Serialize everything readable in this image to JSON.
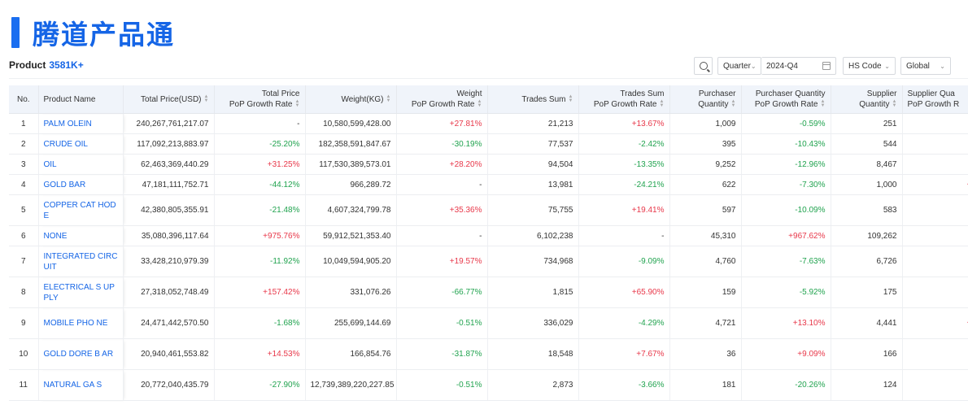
{
  "brand": {
    "title": "腾道产品通"
  },
  "summary": {
    "label": "Product",
    "count": "3581K+"
  },
  "filters": {
    "search_icon": "search-icon",
    "period": "Quarter",
    "date": "2024-Q4",
    "code_type": "HS Code",
    "region": "Global"
  },
  "colors": {
    "accent": "#1565e6",
    "positive": "#e8384a",
    "negative": "#21a34f"
  },
  "table": {
    "headers": {
      "no": "No.",
      "name": "Product Name",
      "total_price": "Total Price(USD)",
      "tp_rate_1": "Total Price",
      "tp_rate_2": "PoP Growth Rate",
      "weight": "Weight(KG)",
      "w_rate_1": "Weight",
      "w_rate_2": "PoP Growth Rate",
      "trades": "Trades Sum",
      "t_rate_1": "Trades Sum",
      "t_rate_2": "PoP Growth Rate",
      "pq_1": "Purchaser",
      "pq_2": "Quantity",
      "pq_rate_1": "Purchaser Quantity",
      "pq_rate_2": "PoP Growth Rate",
      "sq_1": "Supplier",
      "sq_2": "Quantity",
      "sq_rate_1": "Supplier Qua",
      "sq_rate_2": "PoP Growth R"
    },
    "rows": [
      {
        "no": "1",
        "name": "PALM OLEIN",
        "total_price": "240,267,761,217.07",
        "tp_rate": "-",
        "weight": "10,580,599,428.00",
        "w_rate": "+27.81%",
        "trades": "21,213",
        "t_rate": "+13.67%",
        "pq": "1,009",
        "pq_rate": "-0.59%",
        "sq": "251",
        "sq_rate": "-"
      },
      {
        "no": "2",
        "name": "CRUDE OIL",
        "total_price": "117,092,213,883.97",
        "tp_rate": "-25.20%",
        "weight": "182,358,591,847.67",
        "w_rate": "-30.19%",
        "trades": "77,537",
        "t_rate": "-2.42%",
        "pq": "395",
        "pq_rate": "-10.43%",
        "sq": "544",
        "sq_rate": "-"
      },
      {
        "no": "3",
        "name": "OIL",
        "total_price": "62,463,369,440.29",
        "tp_rate": "+31.25%",
        "weight": "117,530,389,573.01",
        "w_rate": "+28.20%",
        "trades": "94,504",
        "t_rate": "-13.35%",
        "pq": "9,252",
        "pq_rate": "-12.96%",
        "sq": "8,467",
        "sq_rate": "-"
      },
      {
        "no": "4",
        "name": "GOLD BAR",
        "total_price": "47,181,111,752.71",
        "tp_rate": "-44.12%",
        "weight": "966,289.72",
        "w_rate": "-",
        "trades": "13,981",
        "t_rate": "-24.21%",
        "pq": "622",
        "pq_rate": "-7.30%",
        "sq": "1,000",
        "sq_rate": "+"
      },
      {
        "no": "5",
        "name": "COPPER CAT HODE",
        "total_price": "42,380,805,355.91",
        "tp_rate": "-21.48%",
        "weight": "4,607,324,799.78",
        "w_rate": "+35.36%",
        "trades": "75,755",
        "t_rate": "+19.41%",
        "pq": "597",
        "pq_rate": "-10.09%",
        "sq": "583",
        "sq_rate": "-"
      },
      {
        "no": "6",
        "name": "NONE",
        "total_price": "35,080,396,117.64",
        "tp_rate": "+975.76%",
        "weight": "59,912,521,353.40",
        "w_rate": "-",
        "trades": "6,102,238",
        "t_rate": "-",
        "pq": "45,310",
        "pq_rate": "+967.62%",
        "sq": "109,262",
        "sq_rate": ""
      },
      {
        "no": "7",
        "name": "INTEGRATED CIRCUIT",
        "total_price": "33,428,210,979.39",
        "tp_rate": "-11.92%",
        "weight": "10,049,594,905.20",
        "w_rate": "+19.57%",
        "trades": "734,968",
        "t_rate": "-9.09%",
        "pq": "4,760",
        "pq_rate": "-7.63%",
        "sq": "6,726",
        "sq_rate": "-"
      },
      {
        "no": "8",
        "name": "ELECTRICAL S UPPLY",
        "total_price": "27,318,052,748.49",
        "tp_rate": "+157.42%",
        "weight": "331,076.26",
        "w_rate": "-66.77%",
        "trades": "1,815",
        "t_rate": "+65.90%",
        "pq": "159",
        "pq_rate": "-5.92%",
        "sq": "175",
        "sq_rate": "-"
      },
      {
        "no": "9",
        "name": "MOBILE PHO NE",
        "total_price": "24,471,442,570.50",
        "tp_rate": "-1.68%",
        "weight": "255,699,144.69",
        "w_rate": "-0.51%",
        "trades": "336,029",
        "t_rate": "-4.29%",
        "pq": "4,721",
        "pq_rate": "+13.10%",
        "sq": "4,441",
        "sq_rate": "+"
      },
      {
        "no": "10",
        "name": "GOLD DORE B AR",
        "total_price": "20,940,461,553.82",
        "tp_rate": "+14.53%",
        "weight": "166,854.76",
        "w_rate": "-31.87%",
        "trades": "18,548",
        "t_rate": "+7.67%",
        "pq": "36",
        "pq_rate": "+9.09%",
        "sq": "166",
        "sq_rate": "-"
      },
      {
        "no": "11",
        "name": "NATURAL GA S",
        "total_price": "20,772,040,435.79",
        "tp_rate": "-27.90%",
        "weight": "12,739,389,220,227.85",
        "w_rate": "-0.51%",
        "trades": "2,873",
        "t_rate": "-3.66%",
        "pq": "181",
        "pq_rate": "-20.26%",
        "sq": "124",
        "sq_rate": "-"
      }
    ]
  }
}
